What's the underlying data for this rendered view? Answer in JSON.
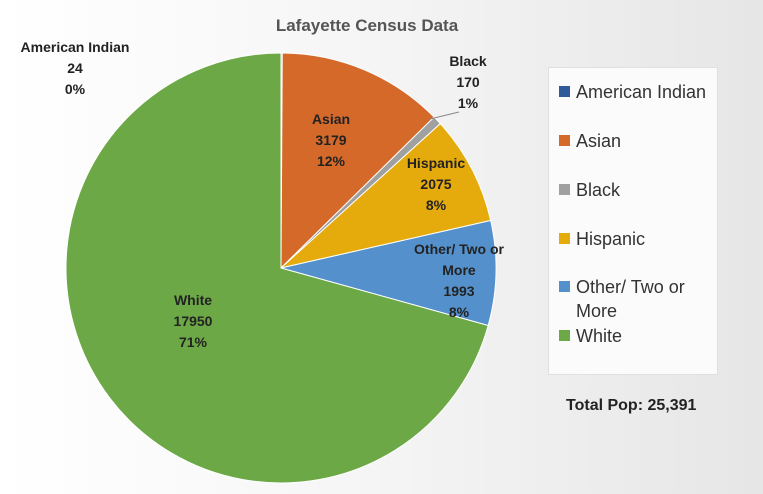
{
  "chart_data": {
    "type": "pie",
    "title": "Lafayette Census Data",
    "slices": [
      {
        "label": "American Indian",
        "value": 24,
        "percent": "0%",
        "color": "#2f5b9a",
        "label_lines": [
          "American Indian",
          "24",
          "0%"
        ]
      },
      {
        "label": "Asian",
        "value": 3179,
        "percent": "12%",
        "color": "#d4692a",
        "label_lines": [
          "Asian",
          "3179",
          "12%"
        ]
      },
      {
        "label": "Black",
        "value": 170,
        "percent": "1%",
        "color": "#a0a0a0",
        "label_lines": [
          "Black",
          "170",
          "1%"
        ]
      },
      {
        "label": "Hispanic",
        "value": 2075,
        "percent": "8%",
        "color": "#e5ab0c",
        "label_lines": [
          "Hispanic",
          "2075",
          "8%"
        ]
      },
      {
        "label": "Other/ Two or More",
        "value": 1993,
        "percent": "8%",
        "color": "#5490cb",
        "label_lines": [
          "Other/ Two or",
          "More",
          "1993",
          "8%"
        ]
      },
      {
        "label": "White",
        "value": 17950,
        "percent": "71%",
        "color": "#6ca946",
        "label_lines": [
          "White",
          "17950",
          "71%"
        ]
      }
    ],
    "legend_position": "right"
  },
  "total_label": "Total Pop: 25,391"
}
